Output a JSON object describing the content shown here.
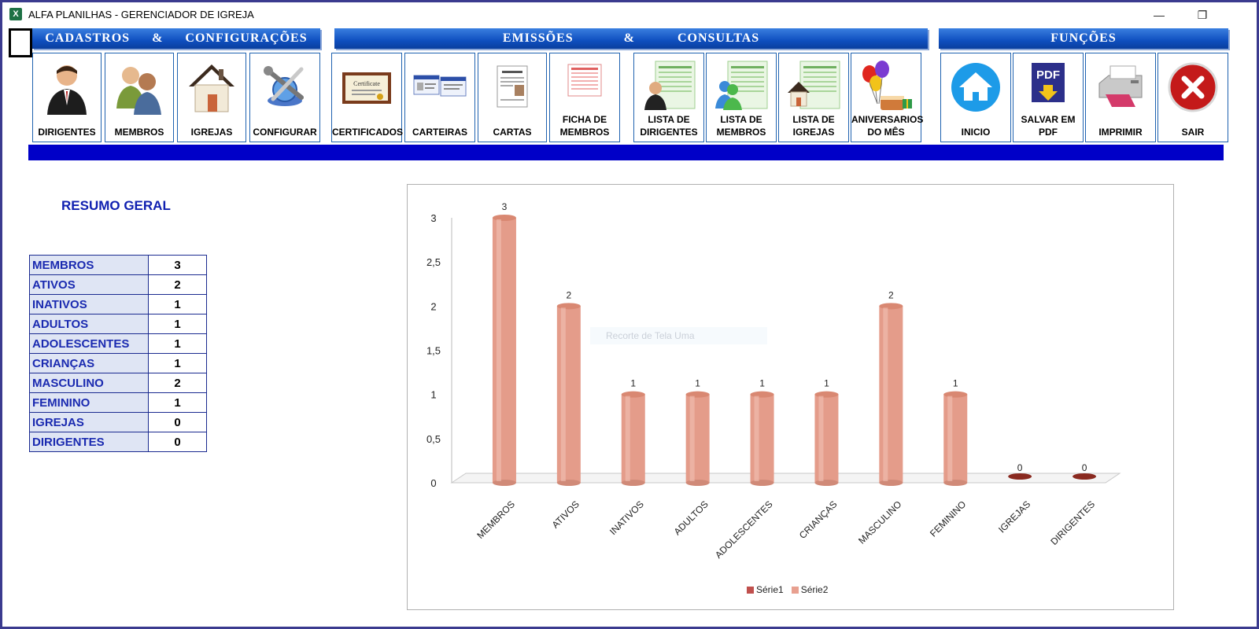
{
  "window": {
    "title": "ALFA PLANILHAS - GERENCIADOR DE IGREJA",
    "app_icon_letter": "X",
    "minimize": "—",
    "restore": "❐",
    "close": "✕"
  },
  "sections": {
    "cadastros": [
      "CADASTROS",
      "&",
      "CONFIGURAÇÕES"
    ],
    "emissoes": [
      "EMISSÕES",
      "&",
      "CONSULTAS"
    ],
    "funcoes": "FUNÇÕES"
  },
  "toolbar": {
    "dirigentes": {
      "label": "DIRIGENTES",
      "icon": "person-suit-icon"
    },
    "membros": {
      "label": "MEMBROS",
      "icon": "people-icon"
    },
    "igrejas": {
      "label": "IGREJAS",
      "icon": "house-icon"
    },
    "configurar": {
      "label": "CONFIGURAR",
      "icon": "tools-globe-icon"
    },
    "certificados": {
      "label": "CERTIFICADOS",
      "icon": "certificate-icon"
    },
    "carteiras": {
      "label": "CARTEIRAS",
      "icon": "id-card-icon"
    },
    "cartas": {
      "label": "CARTAS",
      "icon": "letter-icon"
    },
    "ficha": {
      "label1": "FICHA DE",
      "label2": "MEMBROS",
      "icon": "form-sheet-icon"
    },
    "lista_dirigentes": {
      "label1": "LISTA DE",
      "label2": "DIRIGENTES",
      "icon": "list-person-icon"
    },
    "lista_membros": {
      "label1": "LISTA DE",
      "label2": "MEMBROS",
      "icon": "list-people-icon"
    },
    "lista_igrejas": {
      "label1": "LISTA DE",
      "label2": "IGREJAS",
      "icon": "list-house-icon"
    },
    "aniversarios": {
      "label1": "ANIVERSARIOS",
      "label2": "DO MÊS",
      "icon": "balloons-cake-icon"
    },
    "inicio": {
      "label": "INICIO",
      "icon": "home-icon"
    },
    "salvar_pdf": {
      "label1": "SALVAR EM",
      "label2": "PDF",
      "icon": "pdf-icon"
    },
    "imprimir": {
      "label": "IMPRIMIR",
      "icon": "printer-icon"
    },
    "sair": {
      "label": "SAIR",
      "icon": "close-circle-icon"
    }
  },
  "summary": {
    "title": "RESUMO GERAL",
    "rows": [
      {
        "label": "MEMBROS",
        "value": "3"
      },
      {
        "label": "ATIVOS",
        "value": "2"
      },
      {
        "label": "INATIVOS",
        "value": "1"
      },
      {
        "label": "ADULTOS",
        "value": "1"
      },
      {
        "label": "ADOLESCENTES",
        "value": "1"
      },
      {
        "label": "CRIANÇAS",
        "value": "1"
      },
      {
        "label": "MASCULINO",
        "value": "2"
      },
      {
        "label": "FEMININO",
        "value": "1"
      },
      {
        "label": "IGREJAS",
        "value": "0"
      },
      {
        "label": "DIRIGENTES",
        "value": "0"
      }
    ]
  },
  "tooltip_ghost": "Recorte de Tela Uma",
  "chart_data": {
    "type": "bar",
    "categories": [
      "MEMBROS",
      "ATIVOS",
      "INATIVOS",
      "ADULTOS",
      "ADOLESCENTES",
      "CRIANÇAS",
      "MASCULINO",
      "FEMININO",
      "IGREJAS",
      "DIRIGENTES"
    ],
    "series": [
      {
        "name": "Série1",
        "values": [
          3,
          2,
          1,
          1,
          1,
          1,
          2,
          1,
          0,
          0
        ],
        "color": "#c0504d"
      },
      {
        "name": "Série2",
        "values": [
          3,
          2,
          1,
          1,
          1,
          1,
          2,
          1,
          0,
          0
        ],
        "color": "#e8a090"
      }
    ],
    "yticks": [
      "0",
      "0,5",
      "1",
      "1,5",
      "2",
      "2,5",
      "3"
    ],
    "ylim": [
      0,
      3
    ],
    "legend_position": "bottom",
    "grid": false,
    "style": "3d-cylinder"
  }
}
